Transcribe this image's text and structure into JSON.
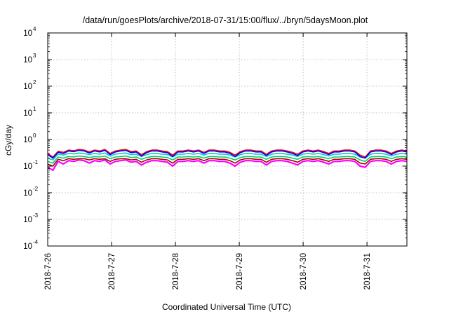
{
  "chart_data": {
    "type": "line",
    "title": "/data/run/goesPlots/archive/2018-07-31/15:00/flux/../bryn/5daysMoon.plot",
    "xlabel": "Coordinated Universal Time (UTC)",
    "ylabel": "cGy/day",
    "yscale": "log",
    "ylim": [
      0.0001,
      10000
    ],
    "xlim": [
      "2018-07-26 00:00",
      "2018-07-31 15:00"
    ],
    "x_ticks": [
      "2018-7-26",
      "2018-7-27",
      "2018-7-28",
      "2018-7-29",
      "2018-7-30",
      "2018-7-31"
    ],
    "y_ticks": [
      {
        "value": 0.0001,
        "base": "10",
        "exp": "-4"
      },
      {
        "value": 0.001,
        "base": "10",
        "exp": "-3"
      },
      {
        "value": 0.01,
        "base": "10",
        "exp": "-2"
      },
      {
        "value": 0.1,
        "base": "10",
        "exp": "-1"
      },
      {
        "value": 1,
        "base": "10",
        "exp": "0"
      },
      {
        "value": 10,
        "base": "10",
        "exp": "1"
      },
      {
        "value": 100,
        "base": "10",
        "exp": "2"
      },
      {
        "value": 1000,
        "base": "10",
        "exp": "3"
      },
      {
        "value": 10000,
        "base": "10",
        "exp": "4"
      }
    ],
    "grid": true,
    "series": [
      {
        "color": "#ff00ff",
        "values": [
          0.09,
          0.07,
          0.15,
          0.12,
          0.16,
          0.15,
          0.17,
          0.16,
          0.13,
          0.16,
          0.15,
          0.17,
          0.12,
          0.15,
          0.16,
          0.17,
          0.14,
          0.15,
          0.11,
          0.14,
          0.16,
          0.16,
          0.15,
          0.14,
          0.1,
          0.15,
          0.15,
          0.16,
          0.15,
          0.16,
          0.13,
          0.16,
          0.16,
          0.15,
          0.15,
          0.13,
          0.1,
          0.14,
          0.16,
          0.16,
          0.15,
          0.15,
          0.11,
          0.15,
          0.16,
          0.16,
          0.15,
          0.13,
          0.11,
          0.15,
          0.16,
          0.15,
          0.16,
          0.14,
          0.12,
          0.15,
          0.15,
          0.16,
          0.16,
          0.15,
          0.1,
          0.09,
          0.15,
          0.16,
          0.16,
          0.15,
          0.12,
          0.15,
          0.16,
          0.15
        ]
      },
      {
        "color": "#aa0000",
        "values": [
          0.12,
          0.1,
          0.18,
          0.16,
          0.19,
          0.18,
          0.19,
          0.19,
          0.17,
          0.19,
          0.18,
          0.19,
          0.15,
          0.18,
          0.19,
          0.19,
          0.17,
          0.18,
          0.14,
          0.17,
          0.19,
          0.19,
          0.18,
          0.17,
          0.13,
          0.18,
          0.18,
          0.19,
          0.18,
          0.19,
          0.16,
          0.19,
          0.19,
          0.18,
          0.18,
          0.16,
          0.13,
          0.17,
          0.19,
          0.19,
          0.18,
          0.18,
          0.14,
          0.18,
          0.19,
          0.19,
          0.18,
          0.16,
          0.14,
          0.18,
          0.19,
          0.18,
          0.19,
          0.17,
          0.15,
          0.18,
          0.18,
          0.19,
          0.19,
          0.18,
          0.13,
          0.12,
          0.18,
          0.19,
          0.19,
          0.18,
          0.15,
          0.18,
          0.19,
          0.18
        ]
      },
      {
        "color": "#00cc66",
        "values": [
          0.15,
          0.13,
          0.22,
          0.2,
          0.23,
          0.22,
          0.24,
          0.23,
          0.21,
          0.23,
          0.22,
          0.24,
          0.19,
          0.22,
          0.23,
          0.24,
          0.21,
          0.22,
          0.18,
          0.21,
          0.23,
          0.23,
          0.22,
          0.21,
          0.17,
          0.22,
          0.22,
          0.23,
          0.22,
          0.23,
          0.2,
          0.23,
          0.23,
          0.22,
          0.22,
          0.2,
          0.17,
          0.21,
          0.23,
          0.23,
          0.22,
          0.22,
          0.18,
          0.22,
          0.23,
          0.23,
          0.22,
          0.2,
          0.18,
          0.22,
          0.23,
          0.22,
          0.23,
          0.21,
          0.19,
          0.22,
          0.22,
          0.23,
          0.23,
          0.22,
          0.17,
          0.15,
          0.22,
          0.23,
          0.23,
          0.22,
          0.19,
          0.22,
          0.23,
          0.22
        ]
      },
      {
        "color": "#00cccc",
        "values": [
          0.2,
          0.17,
          0.28,
          0.26,
          0.3,
          0.29,
          0.31,
          0.3,
          0.27,
          0.3,
          0.28,
          0.31,
          0.24,
          0.28,
          0.3,
          0.31,
          0.27,
          0.28,
          0.23,
          0.27,
          0.3,
          0.3,
          0.28,
          0.27,
          0.22,
          0.28,
          0.28,
          0.3,
          0.28,
          0.3,
          0.26,
          0.3,
          0.3,
          0.28,
          0.28,
          0.26,
          0.22,
          0.27,
          0.3,
          0.3,
          0.28,
          0.28,
          0.23,
          0.28,
          0.3,
          0.3,
          0.28,
          0.26,
          0.23,
          0.28,
          0.3,
          0.28,
          0.3,
          0.27,
          0.24,
          0.28,
          0.28,
          0.3,
          0.3,
          0.28,
          0.22,
          0.2,
          0.28,
          0.3,
          0.3,
          0.28,
          0.24,
          0.28,
          0.3,
          0.28
        ]
      },
      {
        "color": "#ff0000",
        "values": [
          0.3,
          0.22,
          0.36,
          0.33,
          0.4,
          0.38,
          0.42,
          0.4,
          0.34,
          0.4,
          0.37,
          0.42,
          0.3,
          0.37,
          0.4,
          0.42,
          0.35,
          0.37,
          0.27,
          0.35,
          0.4,
          0.4,
          0.37,
          0.35,
          0.26,
          0.37,
          0.37,
          0.4,
          0.37,
          0.4,
          0.33,
          0.4,
          0.4,
          0.37,
          0.37,
          0.33,
          0.26,
          0.35,
          0.4,
          0.4,
          0.37,
          0.37,
          0.28,
          0.37,
          0.4,
          0.4,
          0.37,
          0.33,
          0.28,
          0.37,
          0.4,
          0.37,
          0.4,
          0.35,
          0.3,
          0.37,
          0.37,
          0.4,
          0.4,
          0.37,
          0.26,
          0.22,
          0.37,
          0.4,
          0.4,
          0.37,
          0.3,
          0.37,
          0.4,
          0.37
        ]
      },
      {
        "color": "#0000ff",
        "values": [
          0.27,
          0.2,
          0.33,
          0.3,
          0.37,
          0.35,
          0.39,
          0.37,
          0.31,
          0.37,
          0.34,
          0.39,
          0.27,
          0.34,
          0.37,
          0.39,
          0.32,
          0.34,
          0.24,
          0.32,
          0.37,
          0.37,
          0.34,
          0.32,
          0.23,
          0.34,
          0.34,
          0.37,
          0.34,
          0.37,
          0.3,
          0.37,
          0.37,
          0.34,
          0.34,
          0.3,
          0.23,
          0.32,
          0.37,
          0.37,
          0.34,
          0.34,
          0.25,
          0.34,
          0.37,
          0.37,
          0.34,
          0.3,
          0.25,
          0.34,
          0.37,
          0.34,
          0.37,
          0.32,
          0.27,
          0.34,
          0.34,
          0.37,
          0.37,
          0.34,
          0.23,
          0.2,
          0.34,
          0.37,
          0.37,
          0.34,
          0.27,
          0.34,
          0.37,
          0.34
        ]
      }
    ]
  }
}
